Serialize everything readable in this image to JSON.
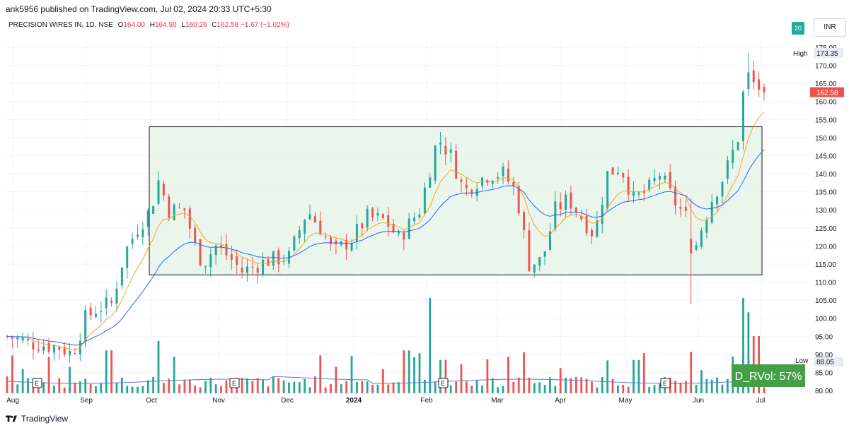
{
  "header": {
    "published_by": "ank5956 published on TradingView.com, Jul 02, 2024 20:33 UTC+5:30",
    "symbol": "PRECISION WIRES IN, 1D, NSE",
    "open_label": "O",
    "open": "164.00",
    "high_label": "H",
    "high": "164.90",
    "low_label": "L",
    "low": "160.26",
    "close_label": "C",
    "close": "162.58",
    "change": "−1.67 (−1.02%)"
  },
  "badge": "20",
  "currency": "INR",
  "labels": {
    "high_text": "High",
    "high_value": "173.35",
    "low_text": "Low",
    "low_value": "88.05",
    "last_price": "162.58",
    "rvol": "D_RVol: 57%",
    "earnings_marker": "E"
  },
  "footer": {
    "brand": "TradingView"
  },
  "colors": {
    "up": "#26a69a",
    "down": "#ef5350",
    "ema_fast": "#f5a623",
    "ema_slow": "#2962ff",
    "range_fill": "#e8f5e9",
    "rvol_bg": "#43a047"
  },
  "chart_data": {
    "type": "candlestick",
    "y_ticks": [
      "175.00",
      "170.00",
      "165.00",
      "160.00",
      "155.00",
      "150.00",
      "145.00",
      "140.00",
      "135.00",
      "130.00",
      "125.00",
      "120.00",
      "115.00",
      "110.00",
      "105.00",
      "100.00",
      "95.00",
      "90.00",
      "85.00",
      "80.00"
    ],
    "ylim": [
      80,
      175
    ],
    "x_ticks": [
      "Aug",
      "Sep",
      "Oct",
      "Nov",
      "Dec",
      "2024",
      "Feb",
      "Mar",
      "Apr",
      "May",
      "Jun",
      "Jul"
    ],
    "range_box": {
      "top": 153,
      "bottom": 112
    },
    "earnings_positions": [
      "Aug",
      "Oct/Nov",
      "Feb",
      "May/Jun"
    ],
    "close_path": [
      {
        "d": 0,
        "c": 95
      },
      {
        "d": 10,
        "c": 93
      },
      {
        "d": 20,
        "c": 92
      },
      {
        "d": 25,
        "c": 90
      },
      {
        "d": 30,
        "c": 100
      },
      {
        "d": 35,
        "c": 103
      },
      {
        "d": 40,
        "c": 104
      },
      {
        "d": 45,
        "c": 118
      },
      {
        "d": 50,
        "c": 125
      },
      {
        "d": 55,
        "c": 130
      },
      {
        "d": 58,
        "c": 138
      },
      {
        "d": 62,
        "c": 130
      },
      {
        "d": 68,
        "c": 130
      },
      {
        "d": 72,
        "c": 120
      },
      {
        "d": 75,
        "c": 115
      },
      {
        "d": 80,
        "c": 120
      },
      {
        "d": 85,
        "c": 117
      },
      {
        "d": 90,
        "c": 113
      },
      {
        "d": 100,
        "c": 116
      },
      {
        "d": 108,
        "c": 117
      },
      {
        "d": 115,
        "c": 130
      },
      {
        "d": 120,
        "c": 125
      },
      {
        "d": 125,
        "c": 118
      },
      {
        "d": 132,
        "c": 122
      },
      {
        "d": 138,
        "c": 128
      },
      {
        "d": 145,
        "c": 127
      },
      {
        "d": 150,
        "c": 122
      },
      {
        "d": 158,
        "c": 130
      },
      {
        "d": 165,
        "c": 150
      },
      {
        "d": 170,
        "c": 145
      },
      {
        "d": 175,
        "c": 135
      },
      {
        "d": 180,
        "c": 138
      },
      {
        "d": 185,
        "c": 140
      },
      {
        "d": 190,
        "c": 140
      },
      {
        "d": 195,
        "c": 135
      },
      {
        "d": 200,
        "c": 115
      },
      {
        "d": 205,
        "c": 116
      },
      {
        "d": 210,
        "c": 130
      },
      {
        "d": 215,
        "c": 133
      },
      {
        "d": 220,
        "c": 128
      },
      {
        "d": 225,
        "c": 123
      },
      {
        "d": 230,
        "c": 140
      },
      {
        "d": 235,
        "c": 142
      },
      {
        "d": 240,
        "c": 133
      },
      {
        "d": 245,
        "c": 135
      },
      {
        "d": 250,
        "c": 140
      },
      {
        "d": 255,
        "c": 133
      },
      {
        "d": 260,
        "c": 128
      },
      {
        "d": 263,
        "c": 118
      },
      {
        "d": 266,
        "c": 125
      },
      {
        "d": 270,
        "c": 133
      },
      {
        "d": 275,
        "c": 140
      },
      {
        "d": 280,
        "c": 150
      },
      {
        "d": 283,
        "c": 168
      },
      {
        "d": 286,
        "c": 165
      },
      {
        "d": 290,
        "c": 162.58
      }
    ],
    "ema_fast_last": 158,
    "ema_slow_last": 150.5,
    "volume_spikes": [
      {
        "d": 39,
        "v": 0.45
      },
      {
        "d": 58,
        "v": 0.55
      },
      {
        "d": 153,
        "v": 0.45
      },
      {
        "d": 162,
        "v": 1.0
      },
      {
        "d": 167,
        "v": 0.35
      },
      {
        "d": 241,
        "v": 0.35
      },
      {
        "d": 283,
        "v": 1.0
      },
      {
        "d": 285,
        "v": 0.85
      },
      {
        "d": 287,
        "v": 0.6
      }
    ]
  }
}
